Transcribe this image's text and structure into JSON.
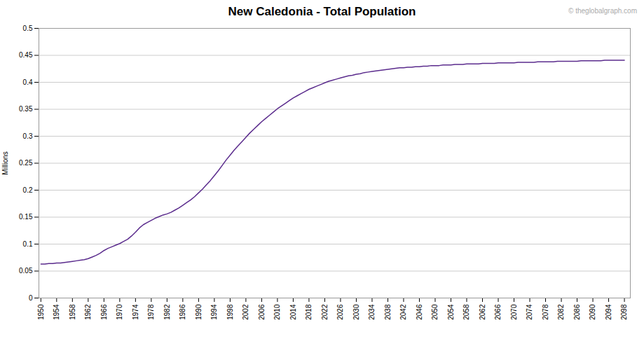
{
  "chart_data": {
    "type": "line",
    "title": "New Caledonia - Total Population",
    "ylabel": "Millions",
    "annotations": [
      "© theglobalgraph.com"
    ],
    "color": "#5B2C8D",
    "grid": true,
    "xlim": [
      1949.5,
      2099.5
    ],
    "xticks": [
      1950,
      1954,
      1958,
      1962,
      1966,
      1970,
      1974,
      1978,
      1982,
      1986,
      1990,
      1994,
      1998,
      2002,
      2006,
      2010,
      2014,
      2018,
      2022,
      2026,
      2030,
      2034,
      2038,
      2042,
      2046,
      2050,
      2054,
      2058,
      2062,
      2066,
      2070,
      2074,
      2078,
      2082,
      2086,
      2090,
      2094,
      2098
    ],
    "ylim": [
      0,
      0.5
    ],
    "yticks": [
      0,
      0.05,
      0.1,
      0.15,
      0.2,
      0.25,
      0.3,
      0.35,
      0.4,
      0.45,
      0.5
    ],
    "x": [
      1950,
      1951,
      1952,
      1953,
      1954,
      1955,
      1956,
      1957,
      1958,
      1959,
      1960,
      1961,
      1962,
      1963,
      1964,
      1965,
      1966,
      1967,
      1968,
      1969,
      1970,
      1971,
      1972,
      1973,
      1974,
      1975,
      1976,
      1977,
      1978,
      1979,
      1980,
      1981,
      1982,
      1983,
      1984,
      1985,
      1986,
      1987,
      1988,
      1989,
      1990,
      1991,
      1992,
      1993,
      1994,
      1995,
      1996,
      1997,
      1998,
      1999,
      2000,
      2001,
      2002,
      2003,
      2004,
      2005,
      2006,
      2007,
      2008,
      2009,
      2010,
      2011,
      2012,
      2013,
      2014,
      2015,
      2016,
      2017,
      2018,
      2019,
      2020,
      2021,
      2022,
      2023,
      2024,
      2025,
      2026,
      2027,
      2028,
      2029,
      2030,
      2031,
      2032,
      2033,
      2034,
      2035,
      2036,
      2037,
      2038,
      2039,
      2040,
      2041,
      2042,
      2043,
      2044,
      2045,
      2046,
      2047,
      2048,
      2049,
      2050,
      2051,
      2052,
      2053,
      2054,
      2055,
      2056,
      2057,
      2058,
      2059,
      2060,
      2061,
      2062,
      2063,
      2064,
      2065,
      2066,
      2067,
      2068,
      2069,
      2070,
      2071,
      2072,
      2073,
      2074,
      2075,
      2076,
      2077,
      2078,
      2079,
      2080,
      2081,
      2082,
      2083,
      2084,
      2085,
      2086,
      2087,
      2088,
      2089,
      2090,
      2091,
      2092,
      2093,
      2094,
      2095,
      2096,
      2097,
      2098
    ],
    "values": [
      0.063,
      0.063,
      0.064,
      0.064,
      0.065,
      0.065,
      0.066,
      0.067,
      0.068,
      0.069,
      0.07,
      0.071,
      0.073,
      0.076,
      0.079,
      0.083,
      0.088,
      0.092,
      0.095,
      0.098,
      0.101,
      0.105,
      0.109,
      0.115,
      0.122,
      0.13,
      0.136,
      0.14,
      0.144,
      0.148,
      0.151,
      0.154,
      0.156,
      0.159,
      0.163,
      0.167,
      0.172,
      0.177,
      0.182,
      0.188,
      0.195,
      0.202,
      0.21,
      0.218,
      0.227,
      0.236,
      0.246,
      0.256,
      0.265,
      0.274,
      0.282,
      0.29,
      0.298,
      0.306,
      0.313,
      0.32,
      0.327,
      0.333,
      0.339,
      0.345,
      0.351,
      0.356,
      0.361,
      0.366,
      0.371,
      0.375,
      0.379,
      0.383,
      0.387,
      0.39,
      0.393,
      0.396,
      0.399,
      0.402,
      0.404,
      0.406,
      0.408,
      0.41,
      0.412,
      0.413,
      0.415,
      0.416,
      0.418,
      0.419,
      0.42,
      0.421,
      0.422,
      0.423,
      0.424,
      0.425,
      0.426,
      0.427,
      0.427,
      0.428,
      0.428,
      0.429,
      0.429,
      0.43,
      0.43,
      0.431,
      0.431,
      0.431,
      0.432,
      0.432,
      0.432,
      0.433,
      0.433,
      0.433,
      0.434,
      0.434,
      0.434,
      0.434,
      0.435,
      0.435,
      0.435,
      0.435,
      0.436,
      0.436,
      0.436,
      0.436,
      0.436,
      0.437,
      0.437,
      0.437,
      0.437,
      0.437,
      0.438,
      0.438,
      0.438,
      0.438,
      0.438,
      0.439,
      0.439,
      0.439,
      0.439,
      0.439,
      0.439,
      0.44,
      0.44,
      0.44,
      0.44,
      0.44,
      0.44,
      0.441,
      0.441,
      0.441,
      0.441,
      0.441,
      0.441
    ]
  }
}
